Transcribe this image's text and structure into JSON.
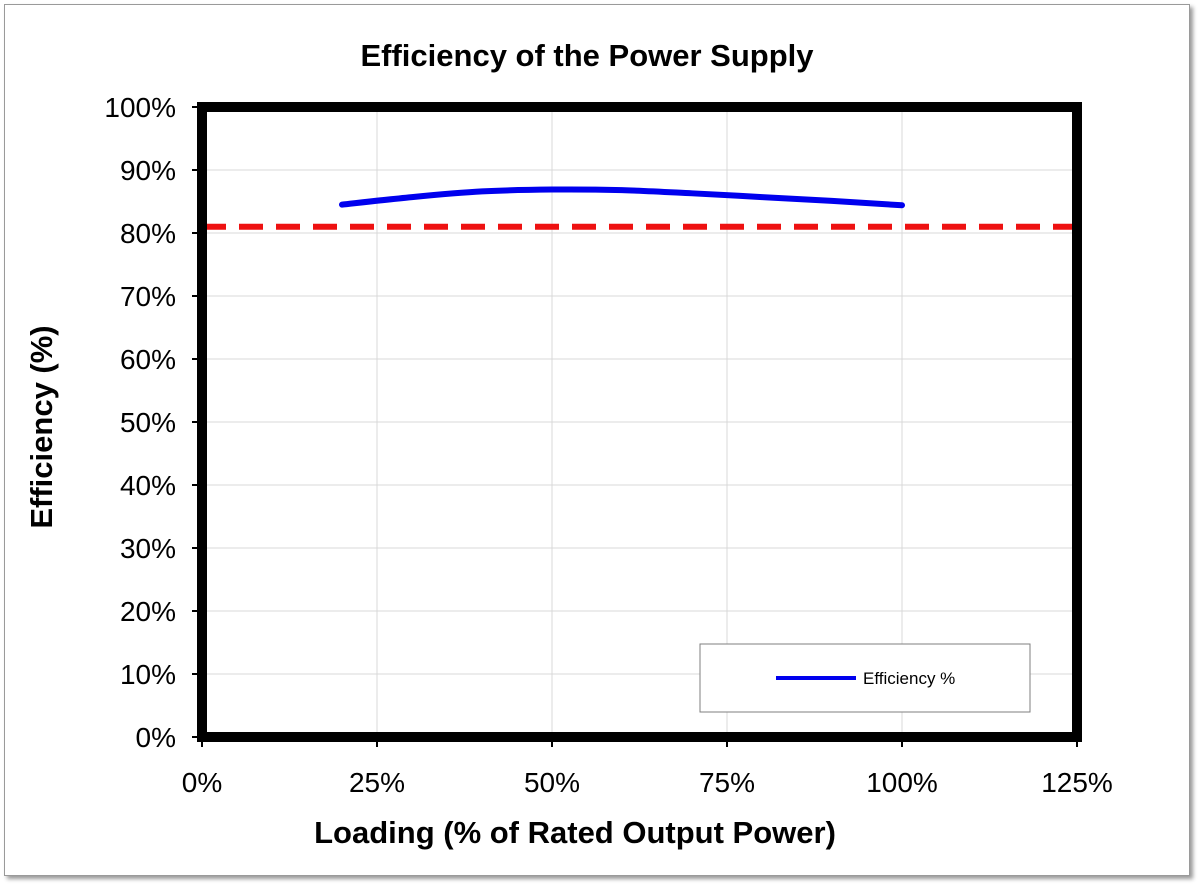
{
  "chart_data": {
    "type": "line",
    "title": "Efficiency of the Power Supply",
    "xlabel": "Loading (% of Rated Output Power)",
    "ylabel": "Efficiency (%)",
    "xlim": [
      0,
      125
    ],
    "ylim": [
      0,
      100
    ],
    "x_ticks": [
      0,
      25,
      50,
      75,
      100,
      125
    ],
    "x_tick_labels": [
      "0%",
      "25%",
      "50%",
      "75%",
      "100%",
      "125%"
    ],
    "y_ticks": [
      0,
      10,
      20,
      30,
      40,
      50,
      60,
      70,
      80,
      90,
      100
    ],
    "y_tick_labels": [
      "0%",
      "10%",
      "20%",
      "30%",
      "40%",
      "50%",
      "60%",
      "70%",
      "80%",
      "90%",
      "100%"
    ],
    "grid": true,
    "series": [
      {
        "name": "Efficiency %",
        "color": "#0000ee",
        "x": [
          20,
          30,
          40,
          50,
          60,
          70,
          80,
          90,
          100
        ],
        "y": [
          84.5,
          85.7,
          86.6,
          86.9,
          86.8,
          86.3,
          85.7,
          85.1,
          84.4
        ]
      }
    ],
    "reference_lines": [
      {
        "y": 81,
        "color": "#ee1111",
        "style": "dashed"
      }
    ],
    "legend": {
      "position": "bottom-right"
    }
  }
}
